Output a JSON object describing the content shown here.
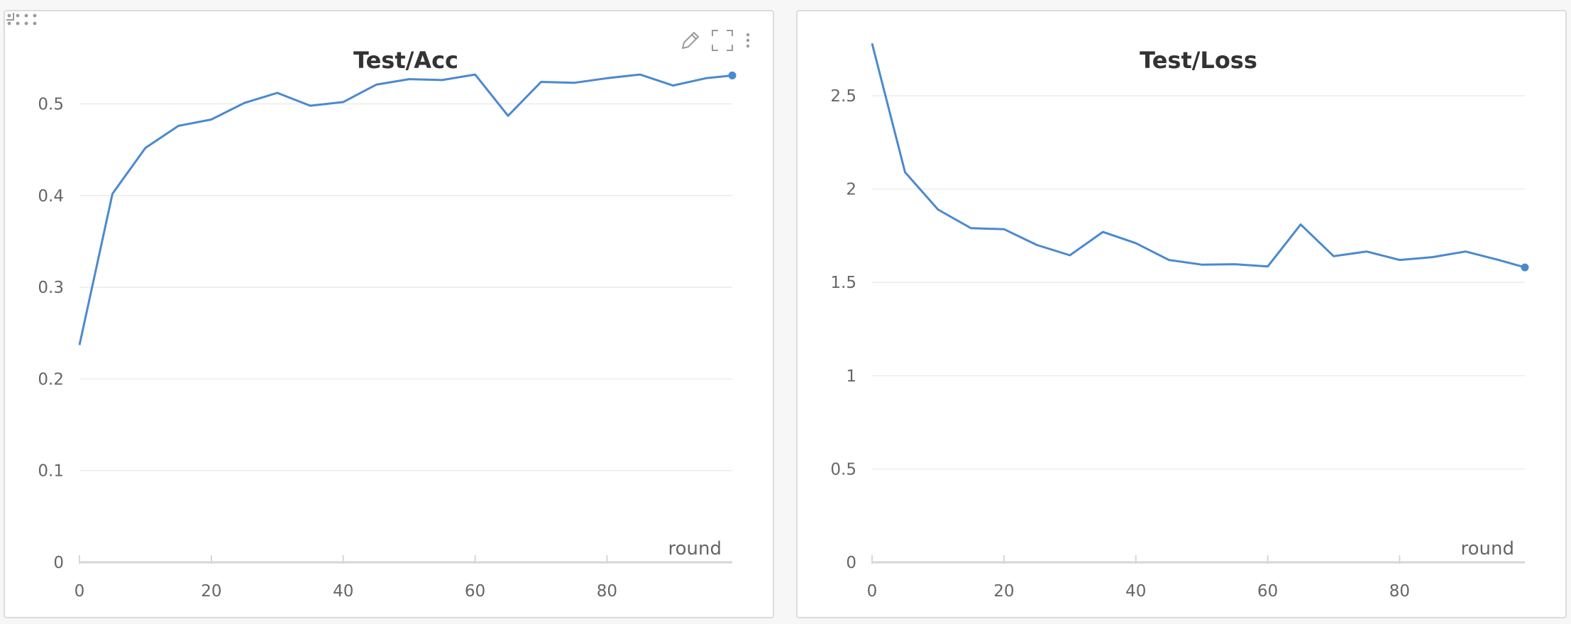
{
  "colors": {
    "series": "#4a89d0",
    "icon": "#9a9a9a"
  },
  "icons": {
    "drag": "drag-handle-icon",
    "edit": "pencil-icon",
    "fullscreen": "fullscreen-icon",
    "menu": "more-vertical-icon",
    "resize": "resize-corner-icon"
  },
  "chart_data": [
    {
      "type": "line",
      "title": "Test/Acc",
      "xlabel": "round",
      "ylabel": "",
      "xlim": [
        0,
        99
      ],
      "ylim": [
        0,
        0.57
      ],
      "xticks": [
        0,
        20,
        40,
        60,
        80
      ],
      "xtick_labels": [
        "0",
        "20",
        "40",
        "60",
        "80"
      ],
      "yticks": [
        0,
        0.1,
        0.2,
        0.3,
        0.4,
        0.5
      ],
      "ytick_labels": [
        "0",
        "0.1",
        "0.2",
        "0.3",
        "0.4",
        "0.5"
      ],
      "grid": true,
      "series": [
        {
          "x": [
            0,
            5,
            10,
            15,
            20,
            25,
            30,
            35,
            40,
            45,
            50,
            55,
            60,
            65,
            70,
            75,
            80,
            85,
            90,
            95,
            99
          ],
          "y": [
            0.237,
            0.402,
            0.452,
            0.476,
            0.483,
            0.501,
            0.512,
            0.498,
            0.502,
            0.521,
            0.527,
            0.526,
            0.532,
            0.487,
            0.524,
            0.523,
            0.528,
            0.532,
            0.52,
            0.528,
            0.531
          ]
        }
      ]
    },
    {
      "type": "line",
      "title": "Test/Loss",
      "xlabel": "round",
      "ylabel": "",
      "xlim": [
        0,
        99
      ],
      "ylim": [
        0,
        2.8
      ],
      "xticks": [
        0,
        20,
        40,
        60,
        80
      ],
      "xtick_labels": [
        "0",
        "20",
        "40",
        "60",
        "80"
      ],
      "yticks": [
        0,
        0.5,
        1,
        1.5,
        2,
        2.5
      ],
      "ytick_labels": [
        "0",
        "0.5",
        "1",
        "1.5",
        "2",
        "2.5"
      ],
      "grid": true,
      "series": [
        {
          "x": [
            0,
            5,
            10,
            15,
            20,
            25,
            30,
            35,
            40,
            45,
            50,
            55,
            60,
            65,
            70,
            75,
            80,
            85,
            90,
            95,
            99
          ],
          "y": [
            2.78,
            2.09,
            1.89,
            1.79,
            1.785,
            1.7,
            1.645,
            1.77,
            1.71,
            1.62,
            1.595,
            1.597,
            1.585,
            1.81,
            1.64,
            1.665,
            1.62,
            1.635,
            1.665,
            1.62,
            1.58
          ]
        }
      ]
    }
  ]
}
